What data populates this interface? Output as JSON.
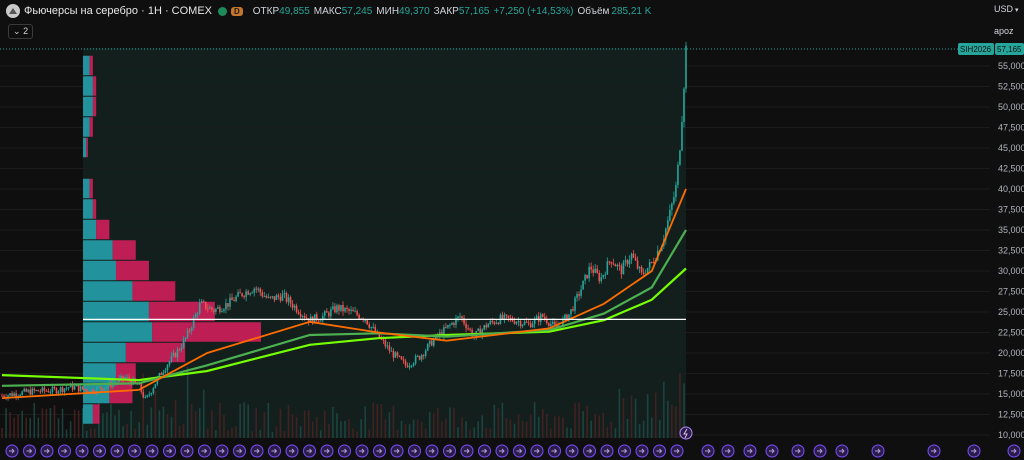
{
  "header": {
    "symbol_title": "Фьючерсы на серебро · 1Н · COMEX",
    "badge": "D",
    "open_label": "ОТКР",
    "open_value": "49,855",
    "high_label": "МАКС",
    "high_value": "57,245",
    "low_label": "МИН",
    "low_value": "49,370",
    "close_label": "ЗАКР",
    "close_value": "57,165",
    "change": "+7,250 (+14,53%)",
    "volume_label": "Объём",
    "volume_value": "285,21 K"
  },
  "collapse_label": "2",
  "currency": "USD",
  "scale_label": "apoz",
  "colors": {
    "background": "#0f0f0f",
    "up": "#26a69a",
    "down": "#ef5350",
    "ma_fast": "#ff6d00",
    "ma_mid": "#4caf50",
    "ma_slow": "#76ff03",
    "vp_up": "#26a7b3",
    "vp_down": "#e91e63",
    "poc": "#ffffff"
  },
  "chart_data": {
    "type": "candlestick",
    "y_axis": {
      "min": 10000,
      "max": 57165,
      "ticks": [
        "55,000",
        "52,500",
        "50,000",
        "47,500",
        "45,000",
        "42,500",
        "40,000",
        "37,500",
        "35,000",
        "32,500",
        "30,000",
        "27,500",
        "25,000",
        "22,500",
        "20,000",
        "17,500",
        "15,000",
        "12,500",
        "10,000"
      ]
    },
    "last_price": {
      "symbol": "SIH2026",
      "value": "57,165"
    },
    "poc_level": 24100,
    "price_path": [
      [
        0,
        14800
      ],
      [
        0.04,
        15300
      ],
      [
        0.08,
        15500
      ],
      [
        0.1,
        15900
      ],
      [
        0.13,
        15400
      ],
      [
        0.16,
        16200
      ],
      [
        0.18,
        17000
      ],
      [
        0.2,
        16000
      ],
      [
        0.21,
        14200
      ],
      [
        0.225,
        16500
      ],
      [
        0.24,
        18500
      ],
      [
        0.255,
        20000
      ],
      [
        0.27,
        22000
      ],
      [
        0.29,
        26000
      ],
      [
        0.31,
        25200
      ],
      [
        0.33,
        26000
      ],
      [
        0.35,
        27200
      ],
      [
        0.37,
        28000
      ],
      [
        0.39,
        26500
      ],
      [
        0.41,
        27000
      ],
      [
        0.43,
        25500
      ],
      [
        0.45,
        24000
      ],
      [
        0.47,
        24500
      ],
      [
        0.49,
        25500
      ],
      [
        0.51,
        25000
      ],
      [
        0.53,
        24300
      ],
      [
        0.55,
        22000
      ],
      [
        0.57,
        20000
      ],
      [
        0.59,
        18500
      ],
      [
        0.61,
        19500
      ],
      [
        0.63,
        21500
      ],
      [
        0.65,
        23000
      ],
      [
        0.67,
        24500
      ],
      [
        0.69,
        22000
      ],
      [
        0.71,
        23500
      ],
      [
        0.73,
        24200
      ],
      [
        0.75,
        24000
      ],
      [
        0.77,
        23500
      ],
      [
        0.79,
        24500
      ],
      [
        0.81,
        23000
      ],
      [
        0.83,
        24800
      ],
      [
        0.845,
        27500
      ],
      [
        0.86,
        30500
      ],
      [
        0.875,
        29000
      ],
      [
        0.89,
        31500
      ],
      [
        0.905,
        30000
      ],
      [
        0.92,
        32000
      ],
      [
        0.935,
        29500
      ],
      [
        0.95,
        31000
      ],
      [
        0.965,
        33500
      ],
      [
        0.975,
        36500
      ],
      [
        0.985,
        40000
      ],
      [
        0.99,
        44000
      ],
      [
        0.995,
        50000
      ],
      [
        1.0,
        57165
      ]
    ],
    "ma_fast": [
      [
        0,
        14500
      ],
      [
        0.2,
        15500
      ],
      [
        0.3,
        20000
      ],
      [
        0.45,
        23800
      ],
      [
        0.55,
        22500
      ],
      [
        0.65,
        21500
      ],
      [
        0.8,
        23000
      ],
      [
        0.88,
        26000
      ],
      [
        0.95,
        30000
      ],
      [
        1.0,
        40000
      ]
    ],
    "ma_mid": [
      [
        0,
        16000
      ],
      [
        0.2,
        16300
      ],
      [
        0.3,
        18500
      ],
      [
        0.45,
        22200
      ],
      [
        0.55,
        22400
      ],
      [
        0.65,
        22000
      ],
      [
        0.8,
        22800
      ],
      [
        0.88,
        24800
      ],
      [
        0.95,
        28000
      ],
      [
        1.0,
        35000
      ]
    ],
    "ma_slow": [
      [
        0,
        17300
      ],
      [
        0.2,
        16700
      ],
      [
        0.3,
        17800
      ],
      [
        0.45,
        21000
      ],
      [
        0.55,
        21800
      ],
      [
        0.65,
        22200
      ],
      [
        0.8,
        22600
      ],
      [
        0.88,
        24000
      ],
      [
        0.95,
        26500
      ],
      [
        1.0,
        30300
      ]
    ],
    "volume_profile": [
      {
        "price": 55000,
        "up": 2,
        "down": 1
      },
      {
        "price": 52500,
        "up": 3,
        "down": 1
      },
      {
        "price": 50000,
        "up": 3,
        "down": 1
      },
      {
        "price": 47500,
        "up": 2,
        "down": 1
      },
      {
        "price": 45000,
        "up": 1,
        "down": 0.5
      },
      {
        "price": 40000,
        "up": 2,
        "down": 1
      },
      {
        "price": 37500,
        "up": 3,
        "down": 1
      },
      {
        "price": 35000,
        "up": 4,
        "down": 4
      },
      {
        "price": 32500,
        "up": 9,
        "down": 7
      },
      {
        "price": 30000,
        "up": 10,
        "down": 10
      },
      {
        "price": 27500,
        "up": 15,
        "down": 13
      },
      {
        "price": 25000,
        "up": 20,
        "down": 20
      },
      {
        "price": 22500,
        "up": 21,
        "down": 33
      },
      {
        "price": 20000,
        "up": 13,
        "down": 18
      },
      {
        "price": 17500,
        "up": 10,
        "down": 6
      },
      {
        "price": 15000,
        "up": 8,
        "down": 7
      },
      {
        "price": 12500,
        "up": 3,
        "down": 2
      }
    ]
  }
}
